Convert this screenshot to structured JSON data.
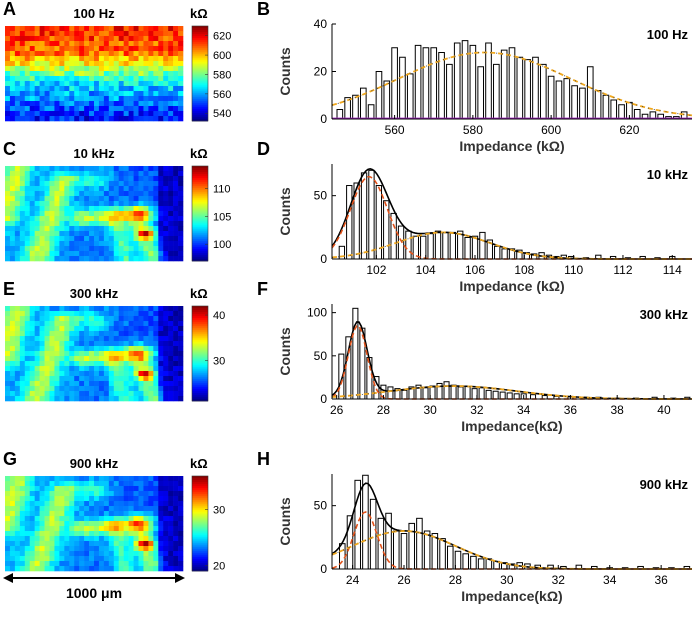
{
  "figure": {
    "scale_bar_label": "1000 μm"
  },
  "rows": [
    {
      "letter_map": "A",
      "letter_hist": "B",
      "map_title": "100 Hz",
      "unit": "kΩ",
      "colorbar_ticks": [
        540,
        560,
        580,
        600,
        620
      ],
      "colorbar_range": [
        532,
        630
      ],
      "map_pattern": "gradient",
      "chart_data": {
        "type": "bar",
        "title": "100 Hz",
        "xlabel": "Impedance (kΩ)",
        "ylabel": "Counts",
        "xlim": [
          544,
          636
        ],
        "ylim": [
          0,
          40
        ],
        "xticks": [
          560,
          580,
          600,
          620
        ],
        "yticks": [
          0,
          20,
          40
        ],
        "x": [
          546,
          548,
          550,
          552,
          554,
          556,
          558,
          560,
          562,
          564,
          566,
          568,
          570,
          572,
          574,
          576,
          578,
          580,
          582,
          584,
          586,
          588,
          590,
          592,
          594,
          596,
          598,
          600,
          602,
          604,
          606,
          608,
          610,
          612,
          614,
          616,
          618,
          620,
          622,
          624,
          626,
          628,
          630,
          632,
          634
        ],
        "values": [
          4,
          9,
          10,
          13,
          6,
          20,
          16,
          30,
          26,
          19,
          31,
          30,
          30,
          28,
          23,
          32,
          33,
          31,
          22,
          32,
          23,
          29,
          30,
          26,
          25,
          26,
          23,
          18,
          16,
          17,
          14,
          13,
          22,
          12,
          10,
          8,
          6,
          7,
          4,
          2,
          3,
          2,
          1,
          1,
          3
        ],
        "series": [
          {
            "name": "fit",
            "style": "dashed-orange",
            "components": [
              {
                "a": 28,
                "mu": 583,
                "sigma": 22
              }
            ]
          },
          {
            "name": "baseline",
            "style": "solid-purple",
            "components": [
              {
                "a": 0.3,
                "mu": 583,
                "sigma": 500
              }
            ]
          }
        ]
      }
    },
    {
      "letter_map": "C",
      "letter_hist": "D",
      "map_title": "10 kHz",
      "unit": "kΩ",
      "colorbar_ticks": [
        100,
        105,
        110
      ],
      "colorbar_range": [
        97,
        114
      ],
      "map_pattern": "tissue",
      "chart_data": {
        "type": "bar",
        "title": "10 kHz",
        "xlabel": "Impedance (kΩ)",
        "ylabel": "Counts",
        "xlim": [
          100.2,
          114.8
        ],
        "ylim": [
          0,
          75
        ],
        "xticks": [
          102,
          104,
          106,
          108,
          110,
          112,
          114
        ],
        "yticks": [
          0,
          50
        ],
        "x": [
          100.6,
          100.9,
          101.2,
          101.5,
          101.8,
          102.1,
          102.4,
          102.7,
          103,
          103.3,
          103.6,
          103.9,
          104.2,
          104.5,
          104.8,
          105.1,
          105.4,
          105.7,
          106,
          106.3,
          106.6,
          106.9,
          107.2,
          107.5,
          107.8,
          108.1,
          108.4,
          108.7,
          109,
          109.3,
          109.6,
          109.9,
          110.5,
          111,
          111.6,
          112.2,
          112.8,
          113.4,
          114
        ],
        "values": [
          10,
          58,
          60,
          68,
          70,
          58,
          46,
          36,
          26,
          22,
          18,
          18,
          20,
          22,
          21,
          21,
          22,
          17,
          18,
          21,
          15,
          10,
          8,
          8,
          7,
          5,
          4,
          5,
          3,
          2,
          3,
          2,
          1,
          3,
          2,
          1,
          2,
          1,
          2
        ],
        "series": [
          {
            "name": "total fit",
            "style": "solid-black",
            "components": [
              {
                "a": 65,
                "mu": 101.7,
                "sigma": 0.75
              },
              {
                "a": 21,
                "mu": 104.7,
                "sigma": 1.9
              }
            ]
          },
          {
            "name": "component 1",
            "style": "dashed-red",
            "components": [
              {
                "a": 65,
                "mu": 101.7,
                "sigma": 0.75
              }
            ]
          },
          {
            "name": "component 2",
            "style": "dashed-orange",
            "components": [
              {
                "a": 21,
                "mu": 104.7,
                "sigma": 1.9
              }
            ]
          }
        ]
      }
    },
    {
      "letter_map": "E",
      "letter_hist": "F",
      "map_title": "300 kHz",
      "unit": "kΩ",
      "colorbar_ticks": [
        30,
        40
      ],
      "colorbar_range": [
        21,
        42
      ],
      "map_pattern": "tissue",
      "chart_data": {
        "type": "bar",
        "title": "300 kHz",
        "xlabel": "Impedance(kΩ)",
        "ylabel": "Counts",
        "xlim": [
          25.8,
          41.2
        ],
        "ylim": [
          0,
          110
        ],
        "xticks": [
          26,
          28,
          30,
          32,
          34,
          36,
          38,
          40
        ],
        "yticks": [
          0,
          50,
          100
        ],
        "x": [
          26.2,
          26.5,
          26.8,
          27.1,
          27.4,
          27.7,
          28,
          28.3,
          28.6,
          28.9,
          29.2,
          29.5,
          29.8,
          30.1,
          30.4,
          30.7,
          31,
          31.3,
          31.6,
          31.9,
          32.2,
          32.5,
          32.8,
          33.1,
          33.4,
          33.7,
          34,
          34.4,
          34.9,
          35.4,
          36,
          36.6,
          37.2,
          38,
          38.8,
          39.6,
          40.4,
          41
        ],
        "values": [
          52,
          72,
          105,
          82,
          48,
          26,
          16,
          14,
          12,
          10,
          14,
          16,
          13,
          15,
          18,
          20,
          16,
          14,
          15,
          12,
          13,
          10,
          9,
          8,
          7,
          6,
          6,
          5,
          4,
          3,
          3,
          2,
          2,
          1,
          1,
          2,
          1,
          2
        ],
        "series": [
          {
            "name": "total fit",
            "style": "solid-black",
            "components": [
              {
                "a": 85,
                "mu": 26.9,
                "sigma": 0.4
              },
              {
                "a": 15,
                "mu": 31.0,
                "sigma": 2.7
              }
            ]
          },
          {
            "name": "component 1",
            "style": "dashed-red",
            "components": [
              {
                "a": 85,
                "mu": 26.9,
                "sigma": 0.4
              }
            ]
          },
          {
            "name": "component 2",
            "style": "dashed-orange",
            "components": [
              {
                "a": 15,
                "mu": 31.0,
                "sigma": 2.7
              }
            ]
          }
        ]
      }
    },
    {
      "letter_map": "G",
      "letter_hist": "H",
      "map_title": "900 kHz",
      "unit": "kΩ",
      "colorbar_ticks": [
        20,
        30
      ],
      "colorbar_range": [
        19,
        36
      ],
      "map_pattern": "tissue",
      "chart_data": {
        "type": "bar",
        "title": "900 kHz",
        "xlabel": "Impedance(kΩ)",
        "ylabel": "Counts",
        "xlim": [
          23.2,
          37.2
        ],
        "ylim": [
          0,
          75
        ],
        "xticks": [
          24,
          26,
          28,
          30,
          32,
          34,
          36
        ],
        "yticks": [
          0,
          50
        ],
        "x": [
          23.6,
          23.9,
          24.2,
          24.5,
          24.8,
          25.1,
          25.4,
          25.7,
          26,
          26.3,
          26.6,
          26.9,
          27.2,
          27.5,
          27.8,
          28.1,
          28.4,
          28.7,
          29,
          29.3,
          29.6,
          29.9,
          30.2,
          30.5,
          30.8,
          31.2,
          31.7,
          32.2,
          32.8,
          33.4,
          34,
          34.6,
          35.2,
          35.8,
          36.4,
          37
        ],
        "values": [
          20,
          42,
          70,
          74,
          55,
          40,
          44,
          30,
          28,
          36,
          40,
          30,
          28,
          24,
          18,
          14,
          12,
          10,
          8,
          8,
          6,
          5,
          4,
          5,
          4,
          3,
          3,
          2,
          3,
          2,
          1,
          1,
          2,
          1,
          1,
          2
        ],
        "series": [
          {
            "name": "total fit",
            "style": "solid-black",
            "components": [
              {
                "a": 45,
                "mu": 24.5,
                "sigma": 0.45
              },
              {
                "a": 30,
                "mu": 26.0,
                "sigma": 2.0
              }
            ]
          },
          {
            "name": "component 1",
            "style": "dashed-red",
            "components": [
              {
                "a": 45,
                "mu": 24.5,
                "sigma": 0.45
              }
            ]
          },
          {
            "name": "component 2",
            "style": "dashed-orange",
            "components": [
              {
                "a": 30,
                "mu": 26.0,
                "sigma": 2.0
              }
            ]
          }
        ]
      }
    }
  ]
}
